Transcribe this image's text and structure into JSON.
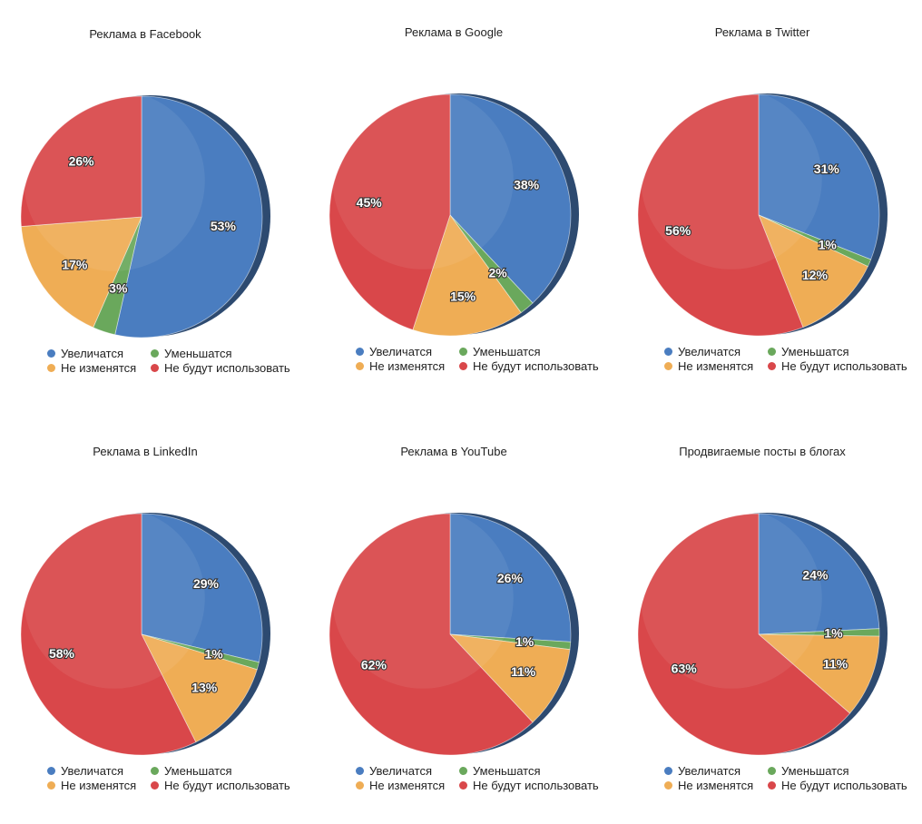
{
  "legend": {
    "items": [
      {
        "label": "Увеличатся",
        "color": "#4a7dc0"
      },
      {
        "label": "Уменьшатся",
        "color": "#6aa85c"
      },
      {
        "label": "Не изменятся",
        "color": "#efad55"
      },
      {
        "label": "Не будут использовать",
        "color": "#d9474a"
      }
    ]
  },
  "chart_data": [
    {
      "type": "pie",
      "title": "Реклама в Facebook",
      "categories": [
        "Увеличатся",
        "Уменьшатся",
        "Не изменятся",
        "Не будут использовать"
      ],
      "values": [
        53,
        3,
        17,
        26
      ],
      "labels": [
        "53%",
        "3%",
        "17%",
        "26%"
      ]
    },
    {
      "type": "pie",
      "title": "Реклама в Google",
      "categories": [
        "Увеличатся",
        "Уменьшатся",
        "Не изменятся",
        "Не будут использовать"
      ],
      "values": [
        38,
        2,
        15,
        45
      ],
      "labels": [
        "38%",
        "2%",
        "15%",
        "45%"
      ]
    },
    {
      "type": "pie",
      "title": "Реклама в Twitter",
      "categories": [
        "Увеличатся",
        "Уменьшатся",
        "Не изменятся",
        "Не будут использовать"
      ],
      "values": [
        31,
        1,
        12,
        56
      ],
      "labels": [
        "31%",
        "1%",
        "12%",
        "56%"
      ]
    },
    {
      "type": "pie",
      "title": "Реклама в LinkedIn",
      "categories": [
        "Увеличатся",
        "Уменьшатся",
        "Не изменятся",
        "Не будут использовать"
      ],
      "values": [
        29,
        1,
        13,
        58
      ],
      "labels": [
        "29%",
        "1%",
        "13%",
        "58%"
      ]
    },
    {
      "type": "pie",
      "title": "Реклама в YouTube",
      "categories": [
        "Увеличатся",
        "Уменьшатся",
        "Не изменятся",
        "Не будут использовать"
      ],
      "values": [
        26,
        1,
        11,
        62
      ],
      "labels": [
        "26%",
        "1%",
        "11%",
        "62%"
      ]
    },
    {
      "type": "pie",
      "title": "Продвигаемые посты в блогах",
      "categories": [
        "Увеличатся",
        "Уменьшатся",
        "Не изменятся",
        "Не будут использовать"
      ],
      "values": [
        24,
        1,
        11,
        63
      ],
      "labels": [
        "24%",
        "1%",
        "11%",
        "63%"
      ]
    }
  ]
}
